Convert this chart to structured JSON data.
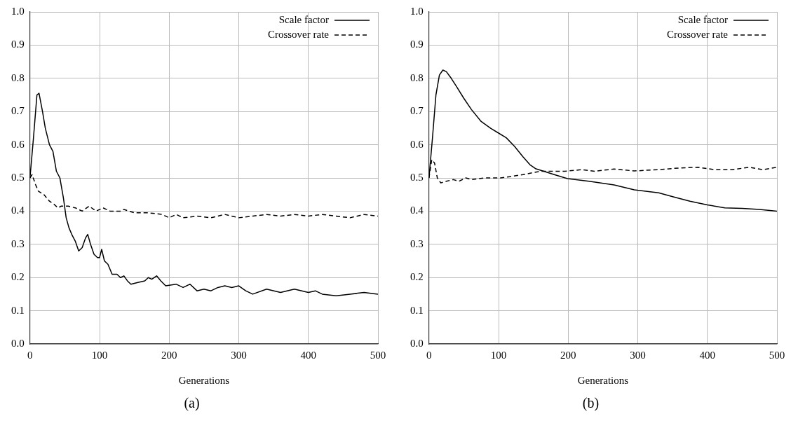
{
  "chart_data": [
    {
      "type": "line",
      "title": "(a)",
      "xlabel": "Generations",
      "xlim": [
        0,
        500
      ],
      "xticks": [
        0,
        100,
        200,
        300,
        400,
        500
      ],
      "ylim": [
        0,
        1
      ],
      "yticks": [
        {
          "value": 0,
          "label": "0.0"
        },
        {
          "value": 0.1,
          "label": "0.1"
        },
        {
          "value": 0.2,
          "label": "0.2"
        },
        {
          "value": 0.3,
          "label": "0.3"
        },
        {
          "value": 0.4,
          "label": "0.4"
        },
        {
          "value": 0.5,
          "label": "0.5"
        },
        {
          "value": 0.6,
          "label": "0.6"
        },
        {
          "value": 0.7,
          "label": "0.7"
        },
        {
          "value": 0.8,
          "label": "0.8"
        },
        {
          "value": 0.9,
          "label": "0.9"
        },
        {
          "value": 1,
          "label": "1.0"
        }
      ],
      "grid": true,
      "legend": "top right",
      "marker": "none",
      "series": [
        {
          "name": "Scale factor",
          "color": "#000000",
          "line_style": "solid",
          "x": [
            0,
            5,
            10,
            13,
            18,
            22,
            28,
            33,
            38,
            43,
            48,
            52,
            56,
            60,
            65,
            70,
            75,
            80,
            83,
            87,
            92,
            97,
            100,
            103,
            107,
            112,
            118,
            125,
            130,
            135,
            140,
            145,
            155,
            165,
            170,
            175,
            182,
            188,
            195,
            210,
            220,
            230,
            240,
            250,
            260,
            270,
            280,
            290,
            300,
            310,
            320,
            340,
            360,
            380,
            400,
            410,
            420,
            440,
            460,
            480,
            500
          ],
          "values": [
            0.5,
            0.62,
            0.75,
            0.755,
            0.7,
            0.65,
            0.6,
            0.58,
            0.52,
            0.5,
            0.44,
            0.38,
            0.35,
            0.33,
            0.31,
            0.28,
            0.29,
            0.32,
            0.33,
            0.3,
            0.27,
            0.26,
            0.26,
            0.285,
            0.25,
            0.24,
            0.21,
            0.21,
            0.2,
            0.205,
            0.19,
            0.18,
            0.185,
            0.19,
            0.2,
            0.195,
            0.205,
            0.19,
            0.175,
            0.18,
            0.17,
            0.18,
            0.16,
            0.165,
            0.16,
            0.17,
            0.175,
            0.17,
            0.175,
            0.16,
            0.15,
            0.165,
            0.155,
            0.165,
            0.155,
            0.16,
            0.15,
            0.145,
            0.15,
            0.155,
            0.15
          ]
        },
        {
          "name": "Crossover rate",
          "color": "#000000",
          "line_style": "dashed",
          "x": [
            0,
            3,
            8,
            12,
            20,
            28,
            35,
            40,
            45,
            55,
            65,
            75,
            85,
            95,
            105,
            115,
            130,
            135,
            150,
            170,
            190,
            200,
            210,
            220,
            240,
            260,
            280,
            300,
            320,
            340,
            360,
            380,
            400,
            420,
            440,
            460,
            480,
            500
          ],
          "values": [
            0.5,
            0.51,
            0.48,
            0.46,
            0.45,
            0.43,
            0.42,
            0.41,
            0.415,
            0.415,
            0.41,
            0.4,
            0.415,
            0.4,
            0.41,
            0.4,
            0.4,
            0.405,
            0.395,
            0.395,
            0.39,
            0.38,
            0.39,
            0.38,
            0.385,
            0.38,
            0.39,
            0.38,
            0.385,
            0.39,
            0.385,
            0.39,
            0.385,
            0.39,
            0.385,
            0.38,
            0.39,
            0.385
          ]
        }
      ]
    },
    {
      "type": "line",
      "title": "(b)",
      "xlabel": "Generations",
      "xlim": [
        0,
        500
      ],
      "xticks": [
        0,
        100,
        200,
        300,
        400,
        500
      ],
      "ylim": [
        0,
        1
      ],
      "yticks": [
        {
          "value": 0,
          "label": "0.0"
        },
        {
          "value": 0.1,
          "label": "0.1"
        },
        {
          "value": 0.2,
          "label": "0.2"
        },
        {
          "value": 0.3,
          "label": "0.3"
        },
        {
          "value": 0.4,
          "label": "0.4"
        },
        {
          "value": 0.5,
          "label": "0.5"
        },
        {
          "value": 0.6,
          "label": "0.6"
        },
        {
          "value": 0.7,
          "label": "0.7"
        },
        {
          "value": 0.8,
          "label": "0.8"
        },
        {
          "value": 0.9,
          "label": "0.9"
        },
        {
          "value": 1,
          "label": "1.0"
        }
      ],
      "grid": true,
      "legend": "top right",
      "marker": "none",
      "series": [
        {
          "name": "Scale factor",
          "color": "#000000",
          "line_style": "solid",
          "x": [
            0,
            5,
            10,
            15,
            20,
            25,
            32,
            39,
            50,
            61,
            75,
            89,
            100,
            111,
            123,
            135,
            145,
            153,
            165,
            180,
            199,
            230,
            266,
            295,
            330,
            351,
            375,
            400,
            425,
            450,
            475,
            500
          ],
          "values": [
            0.5,
            0.62,
            0.75,
            0.81,
            0.825,
            0.82,
            0.8,
            0.777,
            0.74,
            0.706,
            0.67,
            0.649,
            0.635,
            0.621,
            0.595,
            0.564,
            0.54,
            0.528,
            0.52,
            0.51,
            0.498,
            0.49,
            0.479,
            0.464,
            0.455,
            0.443,
            0.43,
            0.419,
            0.41,
            0.408,
            0.405,
            0.4
          ]
        },
        {
          "name": "Crossover rate",
          "color": "#000000",
          "line_style": "dashed",
          "x": [
            0,
            4,
            8,
            12,
            17,
            25,
            35,
            43,
            53,
            61,
            79,
            103,
            120,
            135,
            160,
            195,
            220,
            238,
            266,
            295,
            330,
            360,
            387,
            410,
            436,
            460,
            480,
            500
          ],
          "values": [
            0.5,
            0.555,
            0.545,
            0.5,
            0.485,
            0.49,
            0.495,
            0.49,
            0.5,
            0.495,
            0.5,
            0.5,
            0.505,
            0.51,
            0.52,
            0.52,
            0.525,
            0.52,
            0.527,
            0.521,
            0.525,
            0.53,
            0.532,
            0.525,
            0.525,
            0.532,
            0.525,
            0.532
          ]
        }
      ]
    }
  ]
}
